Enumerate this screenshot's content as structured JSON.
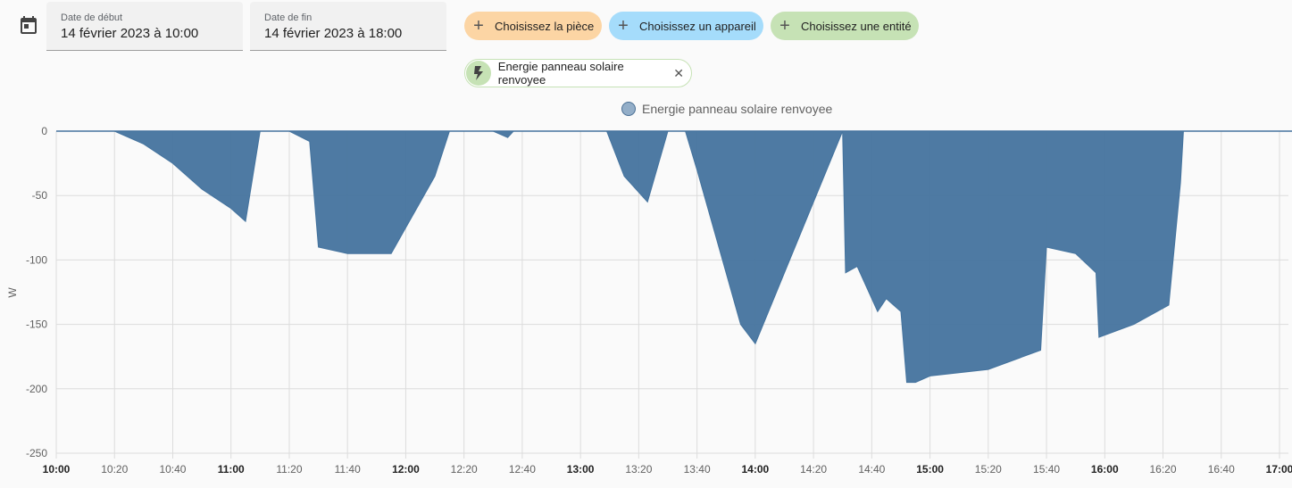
{
  "filters": {
    "start_label": "Date de début",
    "start_value": "14 février 2023 à 10:00",
    "end_label": "Date de fin",
    "end_value": "14 février 2023 à 18:00",
    "room_chip": "Choisissez la pièce",
    "device_chip": "Choisissez un appareil",
    "entity_chip": "Choisissez une entité",
    "selected_entity": "Energie panneau solaire renvoyee",
    "colors": {
      "room": "#fcd5a4",
      "device": "#a5dcfb",
      "entity": "#c6e2b5"
    },
    "icons": [
      "calendar-icon",
      "plus-icon",
      "flash-icon",
      "close-icon"
    ]
  },
  "chart_data": {
    "type": "area",
    "title": "",
    "legend": [
      "Energie panneau solaire renvoyee"
    ],
    "legend_position": "top-center",
    "ylabel": "W",
    "xlabel": "",
    "ylim": [
      -250,
      0
    ],
    "yticks": [
      "0",
      "-50",
      "-100",
      "-150",
      "-200",
      "-250"
    ],
    "xticks": [
      {
        "label": "10:00",
        "bold": true
      },
      {
        "label": "10:20",
        "bold": false
      },
      {
        "label": "10:40",
        "bold": false
      },
      {
        "label": "11:00",
        "bold": true
      },
      {
        "label": "11:20",
        "bold": false
      },
      {
        "label": "11:40",
        "bold": false
      },
      {
        "label": "12:00",
        "bold": true
      },
      {
        "label": "12:20",
        "bold": false
      },
      {
        "label": "12:40",
        "bold": false
      },
      {
        "label": "13:00",
        "bold": true
      },
      {
        "label": "13:20",
        "bold": false
      },
      {
        "label": "13:40",
        "bold": false
      },
      {
        "label": "14:00",
        "bold": true
      },
      {
        "label": "14:20",
        "bold": false
      },
      {
        "label": "14:40",
        "bold": false
      },
      {
        "label": "15:00",
        "bold": true
      },
      {
        "label": "15:20",
        "bold": false
      },
      {
        "label": "15:40",
        "bold": false
      },
      {
        "label": "16:00",
        "bold": true
      },
      {
        "label": "16:20",
        "bold": false
      },
      {
        "label": "16:40",
        "bold": false
      },
      {
        "label": "17:00",
        "bold": true
      }
    ],
    "grid": true,
    "color": "#44739e",
    "series": [
      {
        "name": "Energie panneau solaire renvoyee",
        "x": [
          "10:00",
          "10:20",
          "10:30",
          "10:40",
          "10:50",
          "11:00",
          "11:05",
          "11:10",
          "11:20",
          "11:27",
          "11:30",
          "11:40",
          "11:55",
          "12:00",
          "12:10",
          "12:15",
          "12:30",
          "12:35",
          "12:37",
          "13:00",
          "13:09",
          "13:15",
          "13:23",
          "13:30",
          "13:36",
          "13:40",
          "13:50",
          "13:55",
          "14:00",
          "14:30",
          "14:31",
          "14:35",
          "14:42",
          "14:45",
          "14:50",
          "14:52",
          "14:55",
          "15:00",
          "15:20",
          "15:38",
          "15:40",
          "15:50",
          "15:57",
          "15:58",
          "16:10",
          "16:22",
          "16:26",
          "16:27",
          "17:00"
        ],
        "y": [
          0,
          0,
          -10,
          -25,
          -45,
          -60,
          -70,
          0,
          0,
          -8,
          -90,
          -95,
          -95,
          -75,
          -35,
          0,
          0,
          -5,
          0,
          0,
          0,
          -35,
          -55,
          0,
          0,
          -30,
          -110,
          -150,
          -165,
          0,
          -110,
          -105,
          -140,
          -130,
          -140,
          -195,
          -195,
          -190,
          -185,
          -170,
          -90,
          -95,
          -110,
          -160,
          -150,
          -135,
          -40,
          0,
          0
        ]
      }
    ]
  }
}
